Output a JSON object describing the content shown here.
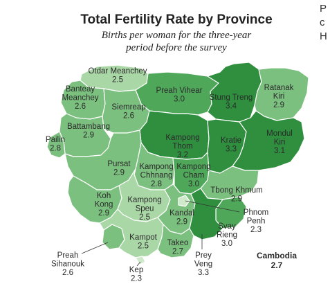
{
  "title": "Total Fertility Rate by Province",
  "subtitle_line1": "Births per woman for the three-year",
  "subtitle_line2": "period before the survey",
  "edge_text_lines": [
    "P",
    "c",
    "H"
  ],
  "colors": {
    "darkest": "#2f8f3f",
    "dark": "#4fa85a",
    "medium": "#7cc07f",
    "light": "#a9d7a6",
    "lightest": "#cfeacb",
    "border": "#ffffff",
    "leader": "#333333"
  },
  "national": {
    "name": "Cambodia",
    "value": "2.7"
  },
  "provinces": [
    {
      "id": "otdar-meanchey",
      "name_lines": [
        "Otdar Meanchey"
      ],
      "value": "2.5"
    },
    {
      "id": "banteay-meanchey",
      "name_lines": [
        "Banteay",
        "Meanchey"
      ],
      "value": "2.6"
    },
    {
      "id": "preah-vihear",
      "name_lines": [
        "Preah Vihear"
      ],
      "value": "3.0"
    },
    {
      "id": "stung-treng",
      "name_lines": [
        "Stung Treng"
      ],
      "value": "3.4"
    },
    {
      "id": "ratanak-kiri",
      "name_lines": [
        "Ratanak",
        "Kiri"
      ],
      "value": "2.9"
    },
    {
      "id": "siemreap",
      "name_lines": [
        "Siemreap"
      ],
      "value": "2.6"
    },
    {
      "id": "battambang",
      "name_lines": [
        "Battambang"
      ],
      "value": "2.9"
    },
    {
      "id": "pailin",
      "name_lines": [
        "Pailin"
      ],
      "value": "2.8"
    },
    {
      "id": "kampong-thom",
      "name_lines": [
        "Kampong",
        "Thom"
      ],
      "value": "3.2"
    },
    {
      "id": "kratie",
      "name_lines": [
        "Kratie"
      ],
      "value": "3.3"
    },
    {
      "id": "mondul-kiri",
      "name_lines": [
        "Mondul",
        "Kiri"
      ],
      "value": "3.1"
    },
    {
      "id": "pursat",
      "name_lines": [
        "Pursat"
      ],
      "value": "2.9"
    },
    {
      "id": "kampong-chhnang",
      "name_lines": [
        "Kampong",
        "Chhnang"
      ],
      "value": "2.8"
    },
    {
      "id": "kampong-cham",
      "name_lines": [
        "Kampong",
        "Cham"
      ],
      "value": "3.0"
    },
    {
      "id": "tbong-khmum",
      "name_lines": [
        "Tbong Khmum"
      ],
      "value": "2.9"
    },
    {
      "id": "koh-kong",
      "name_lines": [
        "Koh",
        "Kong"
      ],
      "value": "2.9"
    },
    {
      "id": "kampong-speu",
      "name_lines": [
        "Kampong",
        "Speu"
      ],
      "value": "2.5"
    },
    {
      "id": "kandal",
      "name_lines": [
        "Kandal"
      ],
      "value": "2.9"
    },
    {
      "id": "phnom-penh",
      "name_lines": [
        "Phnom",
        "Penh"
      ],
      "value": "2.3"
    },
    {
      "id": "svay-rieng",
      "name_lines": [
        "Svay",
        "Rieng"
      ],
      "value": "3.0"
    },
    {
      "id": "preah-sihanouk",
      "name_lines": [
        "Preah",
        "Sihanouk"
      ],
      "value": "2.6"
    },
    {
      "id": "kampot",
      "name_lines": [
        "Kampot"
      ],
      "value": "2.5"
    },
    {
      "id": "takeo",
      "name_lines": [
        "Takeo"
      ],
      "value": "2.7"
    },
    {
      "id": "prey-veng",
      "name_lines": [
        "Prey",
        "Veng"
      ],
      "value": "3.3"
    },
    {
      "id": "kep",
      "name_lines": [
        "Kep"
      ],
      "value": "2.3"
    }
  ]
}
